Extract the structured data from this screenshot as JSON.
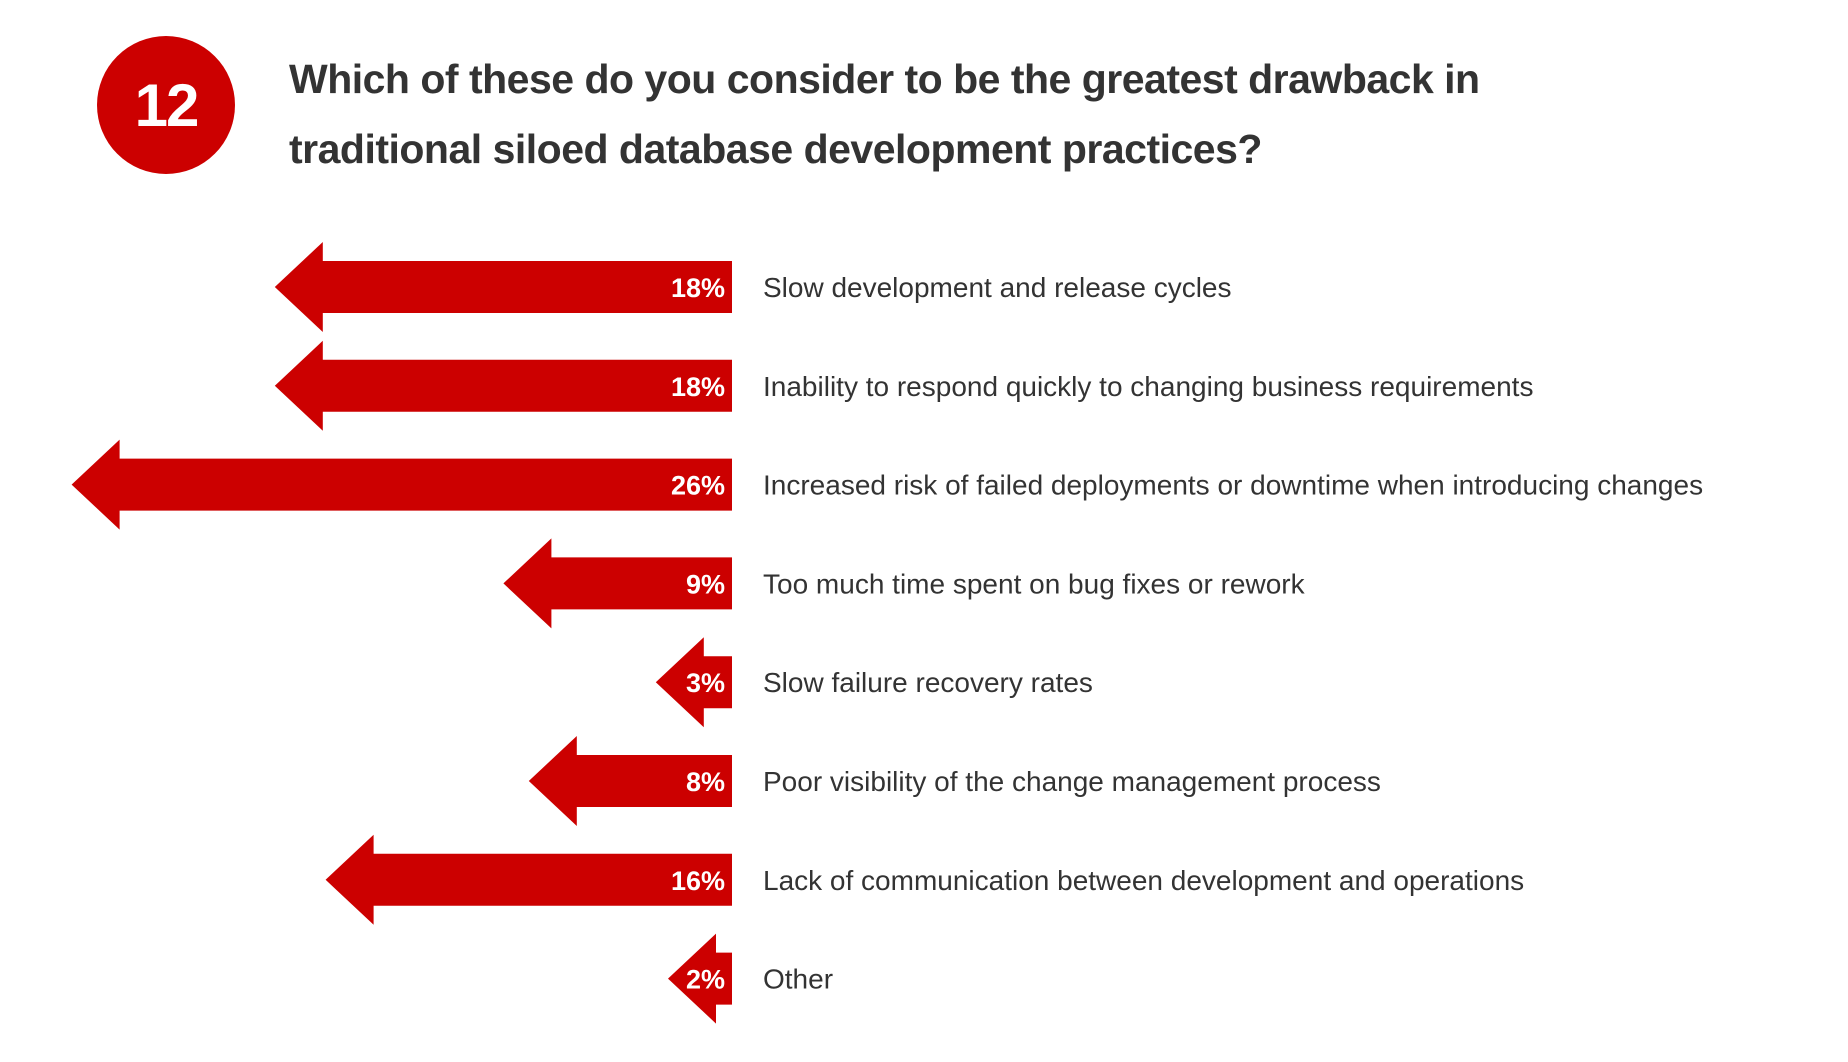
{
  "question_number": "12",
  "title_line1": "Which of these do you consider to be the greatest drawback in",
  "title_line2": "traditional siloed database development practices?",
  "colors": {
    "accent": "#cc0000",
    "text": "#333333"
  },
  "chart_data": {
    "type": "bar",
    "orientation": "horizontal-arrows",
    "title": "Which of these do you consider to be the greatest drawback in traditional siloed database development practices?",
    "categories": [
      "Slow development and release cycles",
      "Inability to respond quickly to changing business requirements",
      "Increased risk of failed deployments or downtime when introducing changes",
      "Too much time spent on bug fixes or rework",
      "Slow failure recovery rates",
      "Poor visibility of the change management process",
      "Lack of communication between development and operations",
      "Other"
    ],
    "values": [
      18,
      18,
      26,
      9,
      3,
      8,
      16,
      2
    ],
    "value_labels": [
      "18%",
      "18%",
      "26%",
      "9%",
      "3%",
      "8%",
      "16%",
      "2%"
    ],
    "unit": "%",
    "xlim": [
      0,
      26
    ]
  }
}
